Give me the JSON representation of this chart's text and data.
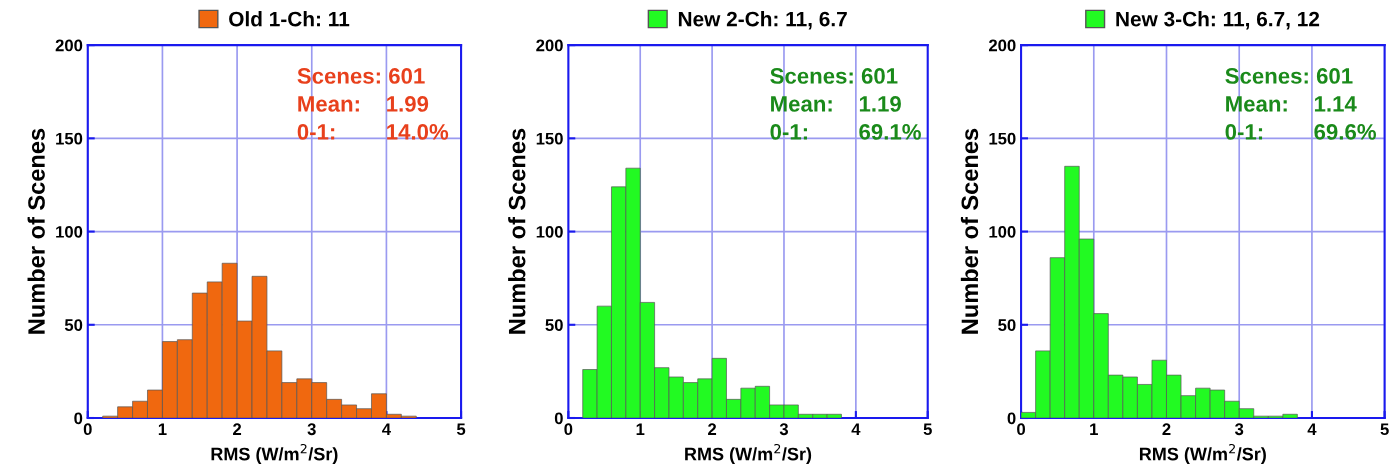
{
  "chart_data": [
    {
      "type": "histogram",
      "xlabel": "RMS (W/m$^{2}$/Sr)",
      "ylabel": "Number of Scenes",
      "bins": [
        0,
        0.2,
        0.4,
        0.6,
        0.8,
        1.0,
        1.2,
        1.4,
        1.6,
        1.8,
        2.0,
        2.2,
        2.4,
        2.6,
        2.8,
        3.0,
        3.2,
        3.4,
        3.6,
        3.8,
        4.0,
        4.2,
        4.4,
        4.6,
        4.8,
        5.0
      ],
      "series": [
        {
          "name": "Old 1-Ch: 11",
          "color": "#f0680f",
          "values": [
            0,
            1,
            6,
            9,
            15,
            41,
            42,
            67,
            73,
            83,
            52,
            76,
            36,
            19,
            21,
            19,
            10,
            7,
            5,
            13,
            2,
            1,
            0,
            0,
            0
          ]
        }
      ],
      "annotations": [
        "Scenes: 601",
        "Mean:    1.99",
        "0-1:        14.0%"
      ],
      "xlim": [
        0,
        5
      ],
      "xticks": [
        0,
        1,
        2,
        3,
        4,
        5
      ],
      "ylim": [
        0,
        200
      ],
      "yticks": [
        0,
        50,
        100,
        150,
        200
      ],
      "grid": true,
      "legend": "top"
    },
    {
      "type": "histogram",
      "xlabel": "RMS (W/m$^{2}$/Sr)",
      "ylabel": "Number of Scenes",
      "bins": [
        0,
        0.2,
        0.4,
        0.6,
        0.8,
        1.0,
        1.2,
        1.4,
        1.6,
        1.8,
        2.0,
        2.2,
        2.4,
        2.6,
        2.8,
        3.0,
        3.2,
        3.4,
        3.6,
        3.8,
        4.0,
        4.2,
        4.4,
        4.6,
        4.8,
        5.0
      ],
      "series": [
        {
          "name": "New 2-Ch: 11, 6.7",
          "color": "#22fa22",
          "values": [
            0,
            26,
            60,
            124,
            134,
            62,
            27,
            22,
            19,
            21,
            32,
            10,
            16,
            17,
            7,
            7,
            2,
            2,
            2,
            0,
            0,
            0,
            0,
            0,
            0
          ]
        }
      ],
      "annotations": [
        "Scenes: 601",
        "Mean:    1.19",
        "0-1:        69.1%"
      ],
      "xlim": [
        0,
        5
      ],
      "xticks": [
        0,
        1,
        2,
        3,
        4,
        5
      ],
      "ylim": [
        0,
        200
      ],
      "yticks": [
        0,
        50,
        100,
        150,
        200
      ],
      "grid": true,
      "legend": "top"
    },
    {
      "type": "histogram",
      "xlabel": "RMS (W/m$^{2}$/Sr)",
      "ylabel": "Number of Scenes",
      "bins": [
        0,
        0.2,
        0.4,
        0.6,
        0.8,
        1.0,
        1.2,
        1.4,
        1.6,
        1.8,
        2.0,
        2.2,
        2.4,
        2.6,
        2.8,
        3.0,
        3.2,
        3.4,
        3.6,
        3.8,
        4.0,
        4.2,
        4.4,
        4.6,
        4.8,
        5.0
      ],
      "series": [
        {
          "name": "New 3-Ch: 11, 6.7, 12",
          "color": "#22fa22",
          "values": [
            3,
            36,
            86,
            135,
            96,
            56,
            23,
            22,
            18,
            31,
            23,
            12,
            16,
            15,
            9,
            5,
            1,
            1,
            2,
            0,
            0,
            0,
            0,
            0,
            0
          ]
        }
      ],
      "annotations": [
        "Scenes: 601",
        "Mean:    1.14",
        "0-1:        69.6%"
      ],
      "xlim": [
        0,
        5
      ],
      "xticks": [
        0,
        1,
        2,
        3,
        4,
        5
      ],
      "ylim": [
        0,
        200
      ],
      "yticks": [
        0,
        50,
        100,
        150,
        200
      ],
      "grid": true,
      "legend": "top"
    }
  ]
}
